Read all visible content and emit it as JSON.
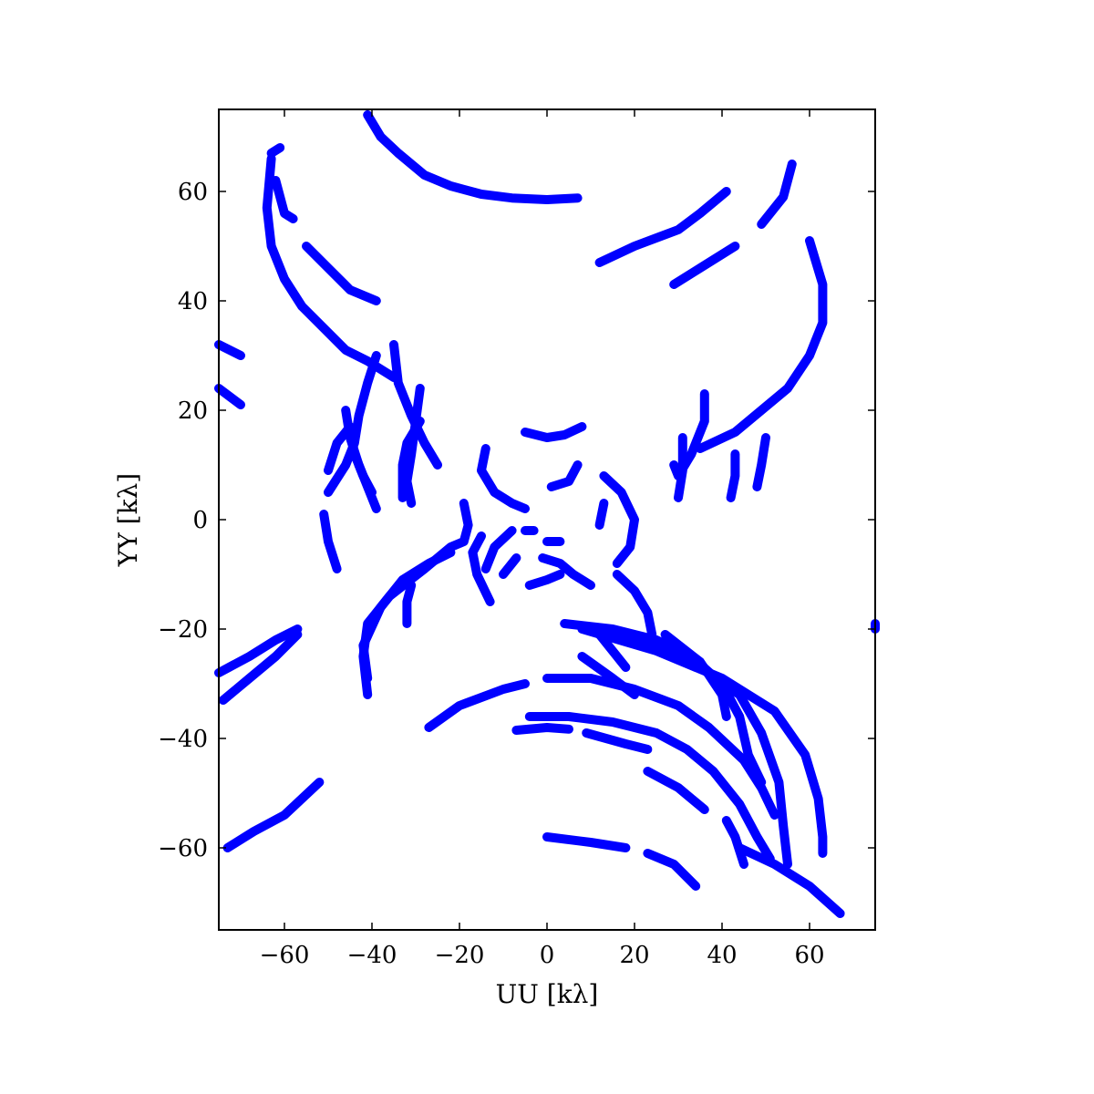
{
  "chart_data": {
    "type": "scatter",
    "title": "",
    "xlabel": "UU [kλ]",
    "ylabel": "YY [kλ]",
    "xlim": [
      -75,
      75
    ],
    "ylim": [
      -75,
      75
    ],
    "x_ticks": [
      -60,
      -40,
      -20,
      0,
      20,
      40,
      60
    ],
    "y_ticks": [
      -60,
      -40,
      -20,
      0,
      20,
      40,
      60
    ],
    "x_tick_labels": [
      "−60",
      "−40",
      "−20",
      "0",
      "20",
      "40",
      "60"
    ],
    "y_tick_labels": [
      "−60",
      "−40",
      "−20",
      "0",
      "20",
      "40",
      "60"
    ],
    "grid": false,
    "legend": "none",
    "marker_color": "#0000ff",
    "series": [
      {
        "values": [
          [
            -41,
            74
          ],
          [
            -38,
            70
          ],
          [
            -34,
            67
          ],
          [
            -28,
            63
          ],
          [
            -22,
            61
          ],
          [
            -15,
            59.5
          ],
          [
            -8,
            58.8
          ],
          [
            0,
            58.5
          ],
          [
            7,
            58.8
          ]
        ]
      },
      {
        "values": [
          [
            -63,
            67
          ],
          [
            -61,
            68
          ]
        ]
      },
      {
        "values": [
          [
            -63,
            66
          ],
          [
            -64,
            57
          ],
          [
            -63,
            50
          ],
          [
            -60,
            44
          ],
          [
            -56,
            39
          ],
          [
            -51,
            35
          ],
          [
            -46,
            31
          ],
          [
            -41,
            29
          ],
          [
            -37,
            27
          ],
          [
            -35,
            26
          ]
        ]
      },
      {
        "values": [
          [
            -62,
            62
          ],
          [
            -60,
            56
          ],
          [
            -58,
            55
          ]
        ]
      },
      {
        "values": [
          [
            -55,
            50
          ],
          [
            -50,
            46
          ],
          [
            -45,
            42
          ],
          [
            -39,
            40
          ]
        ]
      },
      {
        "values": [
          [
            -75,
            32
          ],
          [
            -70,
            30
          ]
        ]
      },
      {
        "values": [
          [
            -75,
            24
          ],
          [
            -70,
            21
          ]
        ]
      },
      {
        "values": [
          [
            -39,
            30
          ],
          [
            -41,
            25
          ],
          [
            -43,
            19
          ],
          [
            -44,
            14
          ],
          [
            -46,
            10
          ],
          [
            -50,
            5
          ]
        ]
      },
      {
        "values": [
          [
            -51,
            1
          ],
          [
            -50,
            -4
          ],
          [
            -48,
            -9
          ]
        ]
      },
      {
        "values": [
          [
            -46,
            20
          ],
          [
            -45,
            15
          ],
          [
            -43,
            10
          ],
          [
            -41,
            6
          ],
          [
            -39,
            2
          ]
        ]
      },
      {
        "values": [
          [
            -50,
            9
          ],
          [
            -48,
            14
          ],
          [
            -45,
            17
          ],
          [
            -44,
            12
          ],
          [
            -42,
            8
          ],
          [
            -40,
            5
          ]
        ]
      },
      {
        "values": [
          [
            -35,
            32
          ],
          [
            -34,
            25
          ],
          [
            -31,
            19
          ],
          [
            -28,
            14
          ],
          [
            -25,
            10
          ]
        ]
      },
      {
        "values": [
          [
            -29,
            24
          ],
          [
            -30,
            18
          ],
          [
            -31,
            12
          ],
          [
            -32,
            7
          ],
          [
            -31,
            3
          ]
        ]
      },
      {
        "values": [
          [
            -29,
            18
          ],
          [
            -32,
            14
          ],
          [
            -33,
            10
          ],
          [
            -33,
            4
          ]
        ]
      },
      {
        "values": [
          [
            -14,
            13
          ],
          [
            -15,
            9
          ],
          [
            -12,
            5
          ],
          [
            -8,
            3
          ],
          [
            -5,
            2
          ]
        ]
      },
      {
        "values": [
          [
            -5,
            16
          ],
          [
            0,
            15
          ],
          [
            4,
            15.5
          ],
          [
            8,
            17
          ]
        ]
      },
      {
        "values": [
          [
            1,
            6
          ],
          [
            5,
            7
          ],
          [
            7,
            10
          ]
        ]
      },
      {
        "values": [
          [
            13,
            8
          ],
          [
            17,
            5
          ],
          [
            20,
            0
          ],
          [
            19,
            -5
          ],
          [
            16,
            -8
          ]
        ]
      },
      {
        "values": [
          [
            13,
            3
          ],
          [
            12,
            -1
          ]
        ]
      },
      {
        "values": [
          [
            -19,
            3
          ],
          [
            -18,
            -1
          ],
          [
            -19,
            -4
          ],
          [
            -22,
            -5
          ],
          [
            -28,
            -9
          ],
          [
            -36,
            -14
          ],
          [
            -41,
            -19
          ],
          [
            -42,
            -25
          ],
          [
            -41,
            -32
          ]
        ]
      },
      {
        "values": [
          [
            -22,
            -6
          ],
          [
            -27,
            -8
          ],
          [
            -33,
            -11
          ],
          [
            -38,
            -16
          ],
          [
            -42,
            -23
          ],
          [
            -41,
            -29
          ]
        ]
      },
      {
        "values": [
          [
            -31,
            -12
          ],
          [
            -32,
            -15
          ],
          [
            -32,
            -19
          ]
        ]
      },
      {
        "values": [
          [
            -15,
            -3
          ],
          [
            -17,
            -6
          ],
          [
            -16,
            -10
          ],
          [
            -13,
            -15
          ]
        ]
      },
      {
        "values": [
          [
            -8,
            -2
          ],
          [
            -12,
            -5
          ],
          [
            -14,
            -9
          ]
        ]
      },
      {
        "values": [
          [
            -10,
            -10
          ],
          [
            -7,
            -7
          ]
        ]
      },
      {
        "values": [
          [
            -5,
            -2
          ],
          [
            -3,
            -2
          ]
        ]
      },
      {
        "values": [
          [
            0,
            -4
          ],
          [
            3,
            -4
          ]
        ]
      },
      {
        "values": [
          [
            -4,
            -12
          ],
          [
            0,
            -11
          ],
          [
            3,
            -10
          ]
        ]
      },
      {
        "values": [
          [
            -1,
            -7
          ],
          [
            3,
            -8
          ],
          [
            6,
            -10
          ],
          [
            10,
            -12
          ]
        ]
      },
      {
        "values": [
          [
            16,
            -10
          ],
          [
            20,
            -13
          ],
          [
            23,
            -17
          ],
          [
            24,
            -21
          ]
        ]
      },
      {
        "values": [
          [
            4,
            -19
          ],
          [
            15,
            -20
          ],
          [
            25,
            -22
          ],
          [
            33,
            -25
          ],
          [
            40,
            -30
          ],
          [
            44,
            -36
          ],
          [
            46,
            -43
          ],
          [
            49,
            -48
          ]
        ]
      },
      {
        "values": [
          [
            10,
            -20
          ],
          [
            23,
            -23
          ],
          [
            35,
            -27
          ],
          [
            44,
            -32
          ],
          [
            49,
            -39
          ],
          [
            53,
            -48
          ],
          [
            54,
            -56
          ],
          [
            55,
            -63
          ]
        ]
      },
      {
        "values": [
          [
            8,
            -20
          ],
          [
            25,
            -24
          ],
          [
            40,
            -29
          ],
          [
            52,
            -35
          ],
          [
            59,
            -43
          ],
          [
            62,
            -51
          ],
          [
            63,
            -58
          ],
          [
            63,
            -61
          ]
        ]
      },
      {
        "values": [
          [
            27,
            -21
          ],
          [
            35,
            -26
          ],
          [
            40,
            -32
          ],
          [
            41,
            -36
          ]
        ]
      },
      {
        "values": [
          [
            12,
            -21
          ],
          [
            15,
            -24
          ],
          [
            18,
            -27
          ]
        ]
      },
      {
        "values": [
          [
            8,
            -25
          ],
          [
            15,
            -29
          ],
          [
            20,
            -32
          ]
        ]
      },
      {
        "values": [
          [
            0,
            -29
          ],
          [
            10,
            -29
          ],
          [
            20,
            -31
          ],
          [
            30,
            -34
          ],
          [
            37,
            -38
          ],
          [
            45,
            -44
          ],
          [
            49,
            -49
          ],
          [
            52,
            -54
          ]
        ]
      },
      {
        "values": [
          [
            -27,
            -38
          ],
          [
            -20,
            -34
          ],
          [
            -10,
            -31
          ],
          [
            -5,
            -30
          ]
        ]
      },
      {
        "values": [
          [
            -4,
            -36
          ],
          [
            5,
            -36
          ],
          [
            15,
            -37
          ],
          [
            25,
            -39
          ],
          [
            32,
            -42
          ],
          [
            38,
            -46
          ],
          [
            44,
            -52
          ],
          [
            48,
            -58
          ],
          [
            51,
            -62
          ]
        ]
      },
      {
        "values": [
          [
            -7,
            -38.5
          ],
          [
            0,
            -38
          ],
          [
            5,
            -38.3
          ]
        ]
      },
      {
        "values": [
          [
            9,
            -39
          ],
          [
            18,
            -41
          ],
          [
            23,
            -42
          ]
        ]
      },
      {
        "values": [
          [
            23,
            -46
          ],
          [
            30,
            -49
          ],
          [
            36,
            -53
          ]
        ]
      },
      {
        "values": [
          [
            0,
            -58
          ],
          [
            10,
            -59
          ],
          [
            18,
            -60
          ]
        ]
      },
      {
        "values": [
          [
            23,
            -61
          ],
          [
            29,
            -63
          ],
          [
            34,
            -67
          ]
        ]
      },
      {
        "values": [
          [
            41,
            -55
          ],
          [
            43,
            -58
          ],
          [
            45,
            -63
          ]
        ]
      },
      {
        "values": [
          [
            44,
            -60
          ],
          [
            52,
            -63
          ],
          [
            60,
            -67
          ],
          [
            67,
            -72
          ]
        ]
      },
      {
        "values": [
          [
            -75,
            -28
          ],
          [
            -68,
            -25
          ],
          [
            -62,
            -22
          ],
          [
            -57,
            -20
          ]
        ]
      },
      {
        "values": [
          [
            -74,
            -33
          ],
          [
            -68,
            -29
          ],
          [
            -62,
            -25
          ],
          [
            -57,
            -21
          ]
        ]
      },
      {
        "values": [
          [
            -73,
            -60
          ],
          [
            -67,
            -57
          ],
          [
            -60,
            -54
          ],
          [
            -52,
            -48
          ]
        ]
      },
      {
        "values": [
          [
            75,
            -19
          ],
          [
            75,
            -20
          ]
        ]
      },
      {
        "values": [
          [
            12,
            47
          ],
          [
            20,
            50
          ],
          [
            30,
            53
          ],
          [
            35,
            56
          ],
          [
            41,
            60
          ]
        ]
      },
      {
        "values": [
          [
            29,
            43
          ],
          [
            35,
            46
          ],
          [
            43,
            50
          ]
        ]
      },
      {
        "values": [
          [
            49,
            54
          ],
          [
            54,
            59
          ],
          [
            56,
            65
          ]
        ]
      },
      {
        "values": [
          [
            60,
            51
          ],
          [
            63,
            43
          ],
          [
            63,
            36
          ],
          [
            60,
            30
          ],
          [
            55,
            24
          ],
          [
            49,
            20
          ],
          [
            43,
            16
          ],
          [
            35,
            13
          ]
        ]
      },
      {
        "values": [
          [
            29,
            10
          ],
          [
            30,
            8
          ],
          [
            33,
            12
          ],
          [
            36,
            18
          ],
          [
            36,
            23
          ]
        ]
      },
      {
        "values": [
          [
            31,
            15
          ],
          [
            31,
            9
          ],
          [
            30,
            4
          ]
        ]
      },
      {
        "values": [
          [
            42,
            4
          ],
          [
            43,
            8
          ],
          [
            43,
            12
          ]
        ]
      },
      {
        "values": [
          [
            48,
            6
          ],
          [
            49,
            10
          ],
          [
            50,
            15
          ]
        ]
      }
    ]
  }
}
